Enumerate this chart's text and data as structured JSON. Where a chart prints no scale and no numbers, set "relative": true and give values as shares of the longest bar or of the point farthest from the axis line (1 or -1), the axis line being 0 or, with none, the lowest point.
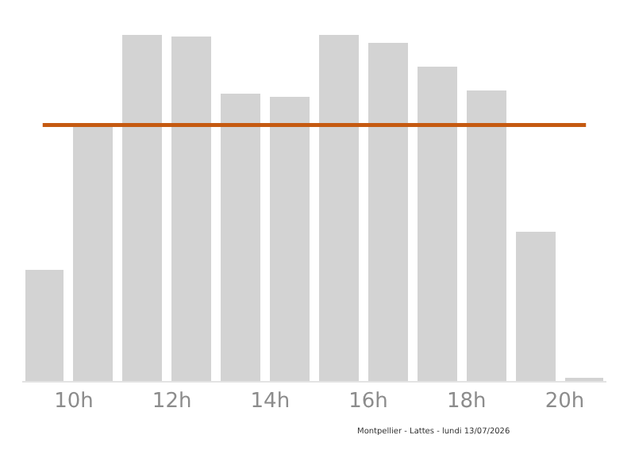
{
  "chart_data": {
    "type": "bar",
    "relative": true,
    "x": [
      9.4,
      10.4,
      11.4,
      12.4,
      13.4,
      14.4,
      15.4,
      16.4,
      17.4,
      18.4,
      19.4,
      20.4
    ],
    "xlim": [
      8.95,
      20.85
    ],
    "xticks": [
      {
        "value": 10,
        "label": "10h"
      },
      {
        "value": 12,
        "label": "12h"
      },
      {
        "value": 14,
        "label": "14h"
      },
      {
        "value": 16,
        "label": "16h"
      },
      {
        "value": 18,
        "label": "18h"
      },
      {
        "value": 20,
        "label": "20h"
      }
    ],
    "values": [
      0.32,
      0.74,
      1,
      0.995,
      0.83,
      0.82,
      1,
      0.98,
      0.91,
      0.84,
      0.43,
      0.005
    ],
    "color": "#d3d3d3",
    "ref_lines": [
      {
        "axis": "y",
        "value": 0.74,
        "color": "#c55a11",
        "line_style": "solid"
      }
    ],
    "annotations": [
      "Montpellier - Lattes - lundi 13/07/2026"
    ]
  }
}
